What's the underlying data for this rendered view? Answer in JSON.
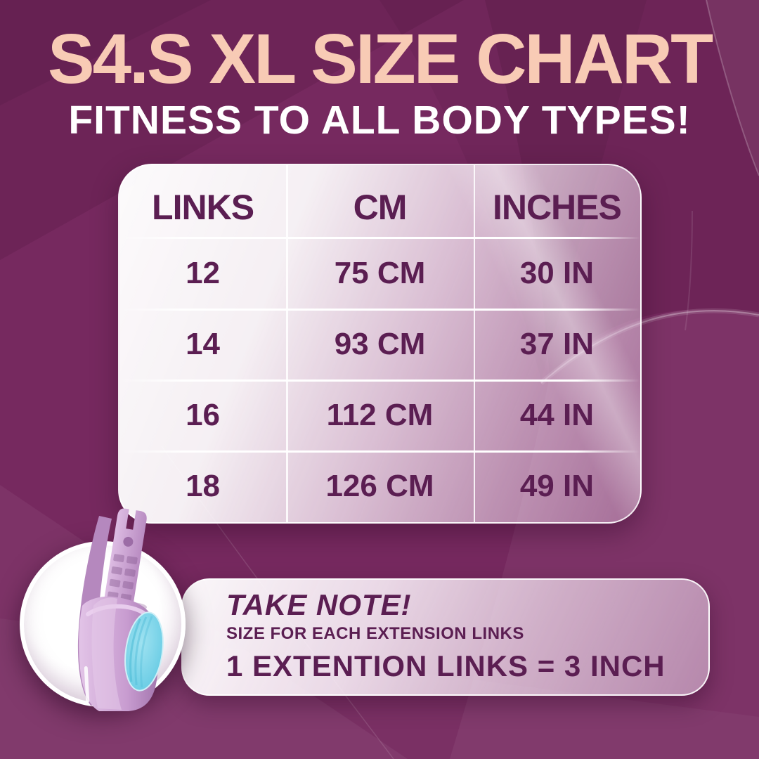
{
  "header": {
    "title": "S4.S XL SIZE CHART",
    "subtitle": "FITNESS TO ALL BODY TYPES!"
  },
  "chart_data": {
    "type": "table",
    "title": "S4.S XL SIZE CHART",
    "subtitle": "FITNESS TO ALL BODY TYPES!",
    "columns": [
      "LINKS",
      "CM",
      "INCHES"
    ],
    "rows": [
      [
        "12",
        "75 CM",
        "30 IN"
      ],
      [
        "14",
        "93 CM",
        "37 IN"
      ],
      [
        "16",
        "112 CM",
        "44 IN"
      ],
      [
        "18",
        "126 CM",
        "49 IN"
      ]
    ]
  },
  "note": {
    "heading": "TAKE NOTE!",
    "subheading": "SIZE FOR EACH EXTENSION LINKS",
    "formula": "1 EXTENTION LINKS = 3 INCH"
  },
  "product_image": {
    "description": "hula hoop extension link with blue release button"
  },
  "colors": {
    "bg": "#76295F",
    "title": "#F8CBB5",
    "subtitle": "#FFFFFF",
    "text": "#5B1E52",
    "lilac": "#C79CCF",
    "blue": "#6ED0E9"
  }
}
